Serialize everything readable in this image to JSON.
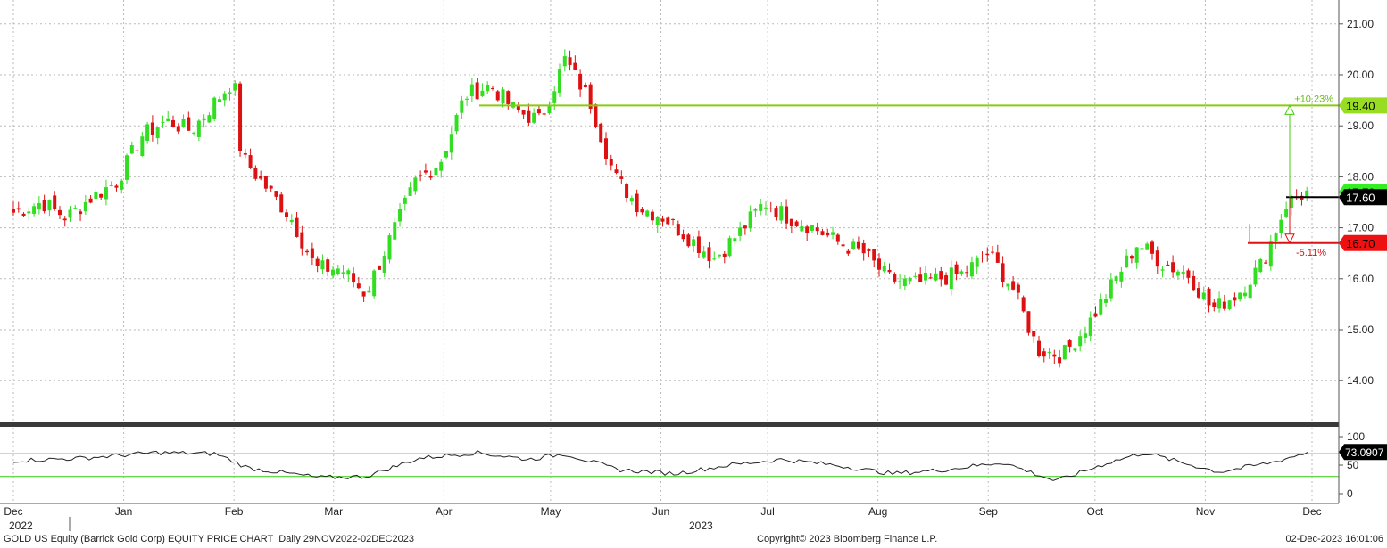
{
  "chart_data": {
    "type": "candlestick",
    "ticker": "GOLD US Equity (Barrick Gold Corp) EQUITY PRICE CHART",
    "frequency": "Daily",
    "range": "29NOV2022-02DEC2023",
    "copyright": "Copyright© 2023 Bloomberg Finance L.P.",
    "timestamp": "02-Dec-2023 16:01:06",
    "y_ticks": [
      "14.00",
      "15.00",
      "16.00",
      "17.00",
      "18.00",
      "19.00",
      "20.00",
      "21.00"
    ],
    "ylim": [
      13.2,
      21.4
    ],
    "x_ticks": [
      "Dec",
      "Jan",
      "Feb",
      "Mar",
      "Apr",
      "May",
      "Jun",
      "Jul",
      "Aug",
      "Sep",
      "Oct",
      "Nov",
      "Dec"
    ],
    "year_labels": [
      "2022",
      "2023"
    ],
    "close_points": [
      [
        "2022-12-01",
        17.3
      ],
      [
        "2022-12-09",
        17.5
      ],
      [
        "2022-12-16",
        17.2
      ],
      [
        "2022-12-23",
        17.6
      ],
      [
        "2022-12-30",
        17.9
      ],
      [
        "2023-01-06",
        18.8
      ],
      [
        "2023-01-13",
        19.1
      ],
      [
        "2023-01-20",
        18.9
      ],
      [
        "2023-01-27",
        19.5
      ],
      [
        "2023-02-01",
        19.9
      ],
      [
        "2023-02-03",
        18.4
      ],
      [
        "2023-02-10",
        17.8
      ],
      [
        "2023-02-17",
        17.2
      ],
      [
        "2023-02-24",
        16.2
      ],
      [
        "2023-03-03",
        16.2
      ],
      [
        "2023-03-10",
        15.7
      ],
      [
        "2023-03-17",
        16.8
      ],
      [
        "2023-03-24",
        17.9
      ],
      [
        "2023-03-31",
        18.3
      ],
      [
        "2023-04-07",
        19.6
      ],
      [
        "2023-04-14",
        19.8
      ],
      [
        "2023-04-21",
        19.3
      ],
      [
        "2023-04-28",
        19.1
      ],
      [
        "2023-05-05",
        20.3
      ],
      [
        "2023-05-12",
        19.5
      ],
      [
        "2023-05-19",
        18.0
      ],
      [
        "2023-05-26",
        17.4
      ],
      [
        "2023-06-02",
        17.2
      ],
      [
        "2023-06-09",
        16.8
      ],
      [
        "2023-06-16",
        16.4
      ],
      [
        "2023-06-23",
        16.9
      ],
      [
        "2023-06-30",
        17.5
      ],
      [
        "2023-07-07",
        17.2
      ],
      [
        "2023-07-14",
        17.0
      ],
      [
        "2023-07-21",
        16.7
      ],
      [
        "2023-07-28",
        16.5
      ],
      [
        "2023-08-04",
        16.0
      ],
      [
        "2023-08-11",
        15.9
      ],
      [
        "2023-08-18",
        16.0
      ],
      [
        "2023-08-25",
        16.1
      ],
      [
        "2023-09-01",
        16.5
      ],
      [
        "2023-09-08",
        15.8
      ],
      [
        "2023-09-15",
        14.6
      ],
      [
        "2023-09-22",
        14.5
      ],
      [
        "2023-09-29",
        15.1
      ],
      [
        "2023-10-06",
        15.9
      ],
      [
        "2023-10-13",
        16.7
      ],
      [
        "2023-10-20",
        16.3
      ],
      [
        "2023-10-27",
        16.1
      ],
      [
        "2023-11-03",
        15.4
      ],
      [
        "2023-11-10",
        15.7
      ],
      [
        "2023-11-17",
        16.3
      ],
      [
        "2023-11-24",
        17.5
      ],
      [
        "2023-11-30",
        17.7
      ]
    ],
    "current_price": {
      "label": "17.60",
      "value": 17.6
    },
    "price_tag_behind": {
      "label": "17.70",
      "value": 17.7
    },
    "upper_level": {
      "label": "19.40",
      "value": 19.4,
      "change": "+10.23%"
    },
    "lower_level": {
      "label": "16.70",
      "value": 16.7,
      "change": "-5.11%"
    },
    "rsi": {
      "y_ticks": [
        "0",
        "50",
        "100"
      ],
      "value_label": "73.0907",
      "overbought": 70,
      "oversold": 30,
      "points": [
        [
          "2022-12-01",
          58
        ],
        [
          "2022-12-20",
          62
        ],
        [
          "2023-01-10",
          72
        ],
        [
          "2023-01-27",
          70
        ],
        [
          "2023-02-05",
          45
        ],
        [
          "2023-02-25",
          28
        ],
        [
          "2023-03-10",
          30
        ],
        [
          "2023-03-25",
          62
        ],
        [
          "2023-04-10",
          72
        ],
        [
          "2023-04-25",
          60
        ],
        [
          "2023-05-05",
          70
        ],
        [
          "2023-05-20",
          42
        ],
        [
          "2023-06-05",
          35
        ],
        [
          "2023-06-20",
          50
        ],
        [
          "2023-07-05",
          60
        ],
        [
          "2023-07-20",
          50
        ],
        [
          "2023-08-05",
          35
        ],
        [
          "2023-08-20",
          42
        ],
        [
          "2023-09-05",
          55
        ],
        [
          "2023-09-20",
          22
        ],
        [
          "2023-10-05",
          55
        ],
        [
          "2023-10-15",
          72
        ],
        [
          "2023-10-25",
          55
        ],
        [
          "2023-11-05",
          38
        ],
        [
          "2023-11-20",
          55
        ],
        [
          "2023-11-30",
          73
        ]
      ]
    }
  }
}
